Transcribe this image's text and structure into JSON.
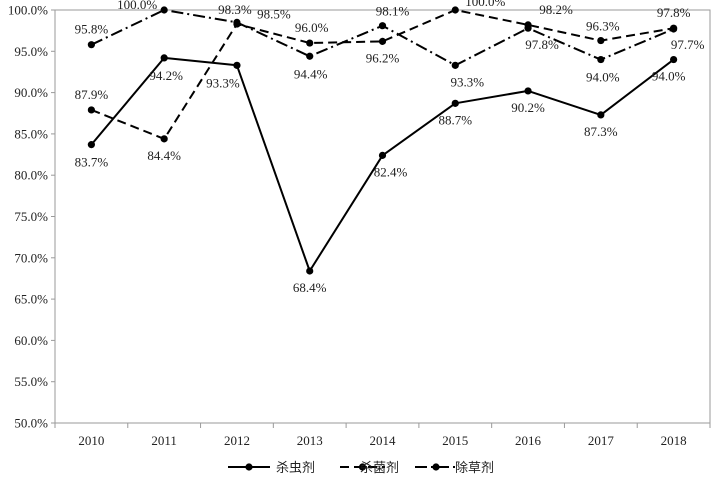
{
  "chart_data": {
    "type": "line",
    "categories": [
      "2010",
      "2011",
      "2012",
      "2013",
      "2014",
      "2015",
      "2016",
      "2017",
      "2018"
    ],
    "ylim": [
      50,
      100
    ],
    "yticks": [
      "50.0%",
      "55.0%",
      "60.0%",
      "65.0%",
      "70.0%",
      "75.0%",
      "80.0%",
      "85.0%",
      "90.0%",
      "95.0%",
      "100.0%"
    ],
    "grid": false,
    "legend_position": "bottom",
    "series": [
      {
        "name": "杀虫剂",
        "dash": "solid",
        "values": [
          83.7,
          94.2,
          93.3,
          68.4,
          82.4,
          88.7,
          90.2,
          87.3,
          94.0
        ],
        "labels": [
          "83.7%",
          "94.2%",
          "93.3%",
          "68.4%",
          "82.4%",
          "88.7%",
          "90.2%",
          "87.3%",
          "94.0%"
        ]
      },
      {
        "name": "杀菌剂",
        "dash": "dash",
        "values": [
          87.9,
          84.4,
          98.3,
          96.0,
          96.2,
          100.0,
          98.2,
          96.3,
          97.8
        ],
        "labels": [
          "87.9%",
          "84.4%",
          "98.3%",
          "96.0%",
          "96.2%",
          "100.0%",
          "98.2%",
          "96.3%",
          "97.8%"
        ]
      },
      {
        "name": "除草剂",
        "dash": "dashdot",
        "values": [
          95.8,
          100.0,
          98.5,
          94.4,
          98.1,
          93.3,
          97.8,
          94.0,
          97.7
        ],
        "labels": [
          "95.8%",
          "100.0%",
          "98.5%",
          "94.4%",
          "98.1%",
          "93.3%",
          "97.8%",
          "94.0%",
          "97.7%"
        ]
      }
    ]
  }
}
